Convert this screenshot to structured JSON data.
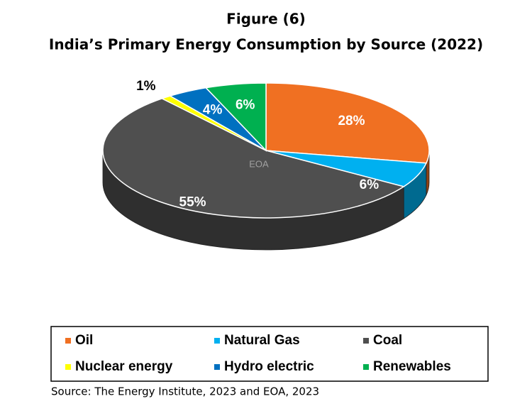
{
  "chart_data": {
    "type": "pie3d",
    "title": "Figure (6)",
    "subtitle": "India’s Primary Energy Consumption by Source (2022)",
    "categories": [
      "Oil",
      "Natural Gas",
      "Coal",
      "Nuclear energy",
      "Hydro electric",
      "Renewables"
    ],
    "values": [
      28,
      6,
      55,
      1,
      4,
      6
    ],
    "value_labels": [
      "28%",
      "6%",
      "55%",
      "1%",
      "4%",
      "6%"
    ],
    "colors": [
      "#f07022",
      "#00b0f0",
      "#4f4f4f",
      "#ffff00",
      "#0070c0",
      "#00b050"
    ],
    "legend": "bottom",
    "watermark": "EOA",
    "source": "Source: The Energy Institute, 2023 and EOA, 2023"
  }
}
